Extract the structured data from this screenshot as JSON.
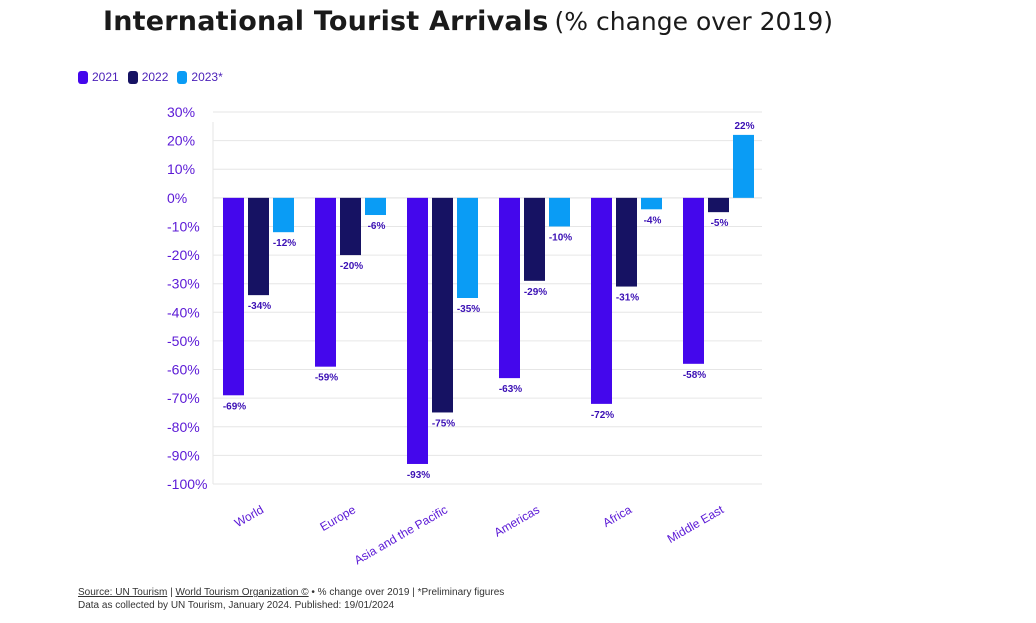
{
  "title_main": "International Tourist Arrivals",
  "title_sub": "(% change over 2019)",
  "colors": {
    "2021": "#4407ec",
    "2022": "#161263",
    "2023*": "#0a9cf5",
    "axis_text": "#5b19d6",
    "label_text": "#3b10b5",
    "grid": "#e6e6e6"
  },
  "chart_data": {
    "type": "bar",
    "title": "International Tourist Arrivals (% change over 2019)",
    "categories": [
      "World",
      "Europe",
      "Asia and the Pacific",
      "Americas",
      "Africa",
      "Middle East"
    ],
    "series": [
      {
        "name": "2021",
        "values": [
          -69,
          -59,
          -93,
          -63,
          -72,
          -58
        ]
      },
      {
        "name": "2022",
        "values": [
          -34,
          -20,
          -75,
          -29,
          -31,
          -5
        ]
      },
      {
        "name": "2023*",
        "values": [
          -12,
          -6,
          -35,
          -10,
          -4,
          22
        ]
      }
    ],
    "data_labels": [
      [
        "-69%",
        "-59%",
        "-93%",
        "-63%",
        "-72%",
        "-58%"
      ],
      [
        "-34%",
        "-20%",
        "-75%",
        "-29%",
        "-31%",
        "-5%"
      ],
      [
        "-12%",
        "-6%",
        "-35%",
        "-10%",
        "-4%",
        "22%"
      ]
    ],
    "y_ticks": [
      30,
      20,
      10,
      0,
      -10,
      -20,
      -30,
      -40,
      -50,
      -60,
      -70,
      -80,
      -90,
      -100
    ],
    "y_tick_labels": [
      "30%",
      "20%",
      "10%",
      "0%",
      "-10%",
      "-20%",
      "-30%",
      "-40%",
      "-50%",
      "-60%",
      "-70%",
      "-80%",
      "-90%",
      "-100%"
    ],
    "ylim": [
      -100,
      30
    ],
    "xlabel": "",
    "ylabel": "",
    "legend_position": "top-left",
    "grid": true
  },
  "footer": {
    "source_link": "Source: UN Tourism",
    "sep1": " | ",
    "org_link": "World Tourism Organization ©",
    "note": " • % change over 2019 | *Preliminary figures",
    "line2": "Data as collected by UN Tourism, January 2024. Published: 19/01/2024"
  }
}
